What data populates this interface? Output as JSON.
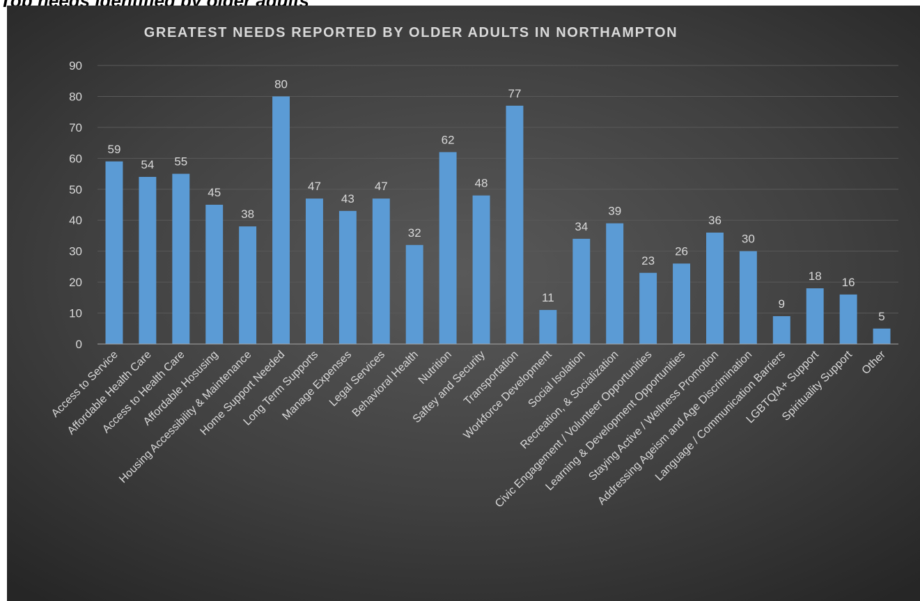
{
  "header": {
    "cropped_caption": "Top needs identified by older adults"
  },
  "colors": {
    "bar": "#5b9bd5",
    "grid": "#595959",
    "text": "#d9d9d9"
  },
  "chart_data": {
    "type": "bar",
    "title": "GREATEST NEEDS REPORTED BY OLDER ADULTS IN NORTHAMPTON",
    "xlabel": "",
    "ylabel": "",
    "ylim": [
      0,
      90
    ],
    "yticks": [
      0,
      10,
      20,
      30,
      40,
      50,
      60,
      70,
      80,
      90
    ],
    "grid": true,
    "legend": "none",
    "categories": [
      "Access to Service",
      "Affordable Health Care",
      "Access to Health Care",
      "Affordable Hosusing",
      "Housing Accessibility & Maintenance",
      "Home Support Needed",
      "Long Term Supports",
      "Manage Expenses",
      "Legal Services",
      "Behavioral Health",
      "Nutrition",
      "Saftey and Security",
      "Transportation",
      "Workforce Development",
      "Social Isolation",
      "Recreation, & Socialization",
      "Civic Engagement / Volunteer Opportunities",
      "Learning & Development Opportunities",
      "Staying Active / Wellness Promotion",
      "Addressing Ageism and Age Discrimination",
      "Language / Communication Barriers",
      "LGBTQIA+ Support",
      "Spirituality Support",
      "Other"
    ],
    "values": [
      59,
      54,
      55,
      45,
      38,
      80,
      47,
      43,
      47,
      32,
      62,
      48,
      77,
      11,
      34,
      39,
      23,
      26,
      36,
      30,
      9,
      18,
      16,
      5
    ]
  }
}
